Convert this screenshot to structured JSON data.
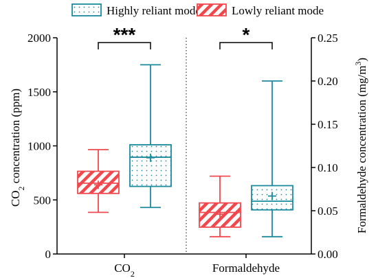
{
  "chart_data": {
    "type": "box",
    "legend": {
      "placement": "top",
      "entries": [
        {
          "key": "high",
          "label": "Highly reliant mode",
          "color": "#1a8a9c",
          "pattern": "dots"
        },
        {
          "key": "low",
          "label": "Lowly reliant mode",
          "color": "#f0484d",
          "pattern": "diagonal-stripes"
        }
      ]
    },
    "left_axis": {
      "label_main": "CO",
      "label_sub": "2",
      "label_tail": " concentration (ppm)",
      "ylim": [
        0,
        2000
      ],
      "ticks": [
        "0",
        "500",
        "1000",
        "1500",
        "2000"
      ],
      "tick_values": [
        0,
        500,
        1000,
        1500,
        2000
      ]
    },
    "right_axis": {
      "label_main": "Formaldehyde concentration (mg/m",
      "label_sup": "3",
      "label_tail": ")",
      "ylim": [
        0,
        0.25
      ],
      "ticks": [
        "0.00",
        "0.05",
        "0.10",
        "0.15",
        "0.20",
        "0.25"
      ],
      "tick_values": [
        0,
        0.05,
        0.1,
        0.15,
        0.2,
        0.25
      ]
    },
    "groups": [
      {
        "name_main": "CO",
        "name_sub": "2",
        "axis": "left",
        "significance": "***",
        "boxes": [
          {
            "series": "low",
            "min": 385,
            "q1": 560,
            "median": 655,
            "q3": 765,
            "max": 965,
            "mean": 640
          },
          {
            "series": "high",
            "min": 430,
            "q1": 625,
            "median": 895,
            "q3": 1010,
            "max": 1750,
            "mean": 890
          }
        ]
      },
      {
        "name_main": "Formaldehyde",
        "name_sub": "",
        "axis": "right",
        "significance": "*",
        "boxes": [
          {
            "series": "low",
            "min": 0.02,
            "q1": 0.031,
            "median": 0.048,
            "q3": 0.059,
            "max": 0.09,
            "mean": 0.046
          },
          {
            "series": "high",
            "min": 0.02,
            "q1": 0.051,
            "median": 0.061,
            "q3": 0.079,
            "max": 0.2,
            "mean": 0.067
          }
        ]
      }
    ]
  }
}
